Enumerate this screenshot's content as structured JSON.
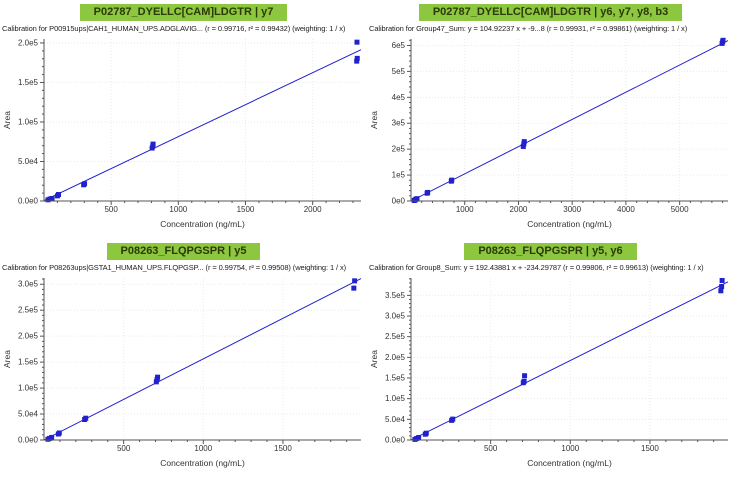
{
  "app": {
    "background": "#ffffff",
    "colors": {
      "title_bar_bg": "#8dc63f",
      "title_text": "#2b3a08",
      "series_blue": "#2121cd",
      "axis": "#555555",
      "grid": "#eaeaea",
      "tick_text": "#333333"
    }
  },
  "chart_data": [
    {
      "type": "scatter",
      "title": "P02787_DYELLC[CAM]LDGTR | y7",
      "subtitle": "Calibration for P00915ups|CAH1_HUMAN_UPS.ADGLAVIG... (r = 0.99716, r² = 0.99432) (weighting: 1 / x)",
      "xlabel": "Concentration (ng/mL)",
      "ylabel": "Area",
      "xlim": [
        0,
        2360
      ],
      "ylim": [
        0,
        205000
      ],
      "grid": true,
      "legend": "none",
      "xticks": [
        [
          500,
          "500"
        ],
        [
          1000,
          "1000"
        ],
        [
          1500,
          "1500"
        ],
        [
          2000,
          "2000"
        ]
      ],
      "yticks": [
        [
          0,
          "0.0e0"
        ],
        [
          50000,
          "5.0e4"
        ],
        [
          100000,
          "1.0e5"
        ],
        [
          150000,
          "1.5e5"
        ],
        [
          200000,
          "2.0e5"
        ]
      ],
      "x_minor_step": 100,
      "y_minor_step": 10000,
      "regression": {
        "r": 0.99716,
        "r2": 0.99432,
        "weighting": "1 / x",
        "line": [
          [
            0,
            500
          ],
          [
            2360,
            191500
          ]
        ]
      },
      "points": [
        [
          30,
          1500
        ],
        [
          45,
          2500
        ],
        [
          60,
          3200
        ],
        [
          100,
          6500
        ],
        [
          108,
          8200
        ],
        [
          295,
          20500
        ],
        [
          302,
          21800
        ],
        [
          805,
          67000
        ],
        [
          810,
          69500
        ],
        [
          812,
          72000
        ],
        [
          2328,
          177000
        ],
        [
          2332,
          180500
        ],
        [
          2330,
          201000
        ]
      ]
    },
    {
      "type": "scatter",
      "title": "P02787_DYELLC[CAM]LDGTR | y6, y7, y8, b3",
      "subtitle": "Calibration for Group47_Sum: y = 104.92237 x + -9...8 (r = 0.99931, r² = 0.99861) (weighting: 1 / x)",
      "xlabel": "Concentration (ng/mL)",
      "ylabel": "Area",
      "xlim": [
        0,
        5900
      ],
      "ylim": [
        0,
        625000
      ],
      "grid": true,
      "legend": "none",
      "xticks": [
        [
          1000,
          "1000"
        ],
        [
          2000,
          "2000"
        ],
        [
          3000,
          "3000"
        ],
        [
          4000,
          "4000"
        ],
        [
          5000,
          "5000"
        ]
      ],
      "yticks": [
        [
          0,
          "0e0"
        ],
        [
          100000,
          "1e5"
        ],
        [
          200000,
          "2e5"
        ],
        [
          300000,
          "3e5"
        ],
        [
          400000,
          "4e5"
        ],
        [
          500000,
          "5e5"
        ],
        [
          600000,
          "6e5"
        ]
      ],
      "x_minor_step": 200,
      "y_minor_step": 20000,
      "regression": {
        "slope": 104.92237,
        "r": 0.99931,
        "r2": 0.99861,
        "weighting": "1 / x",
        "line": [
          [
            0,
            0
          ],
          [
            5900,
            619000
          ]
        ]
      },
      "points": [
        [
          60,
          2000
        ],
        [
          75,
          4000
        ],
        [
          90,
          6500
        ],
        [
          112,
          9000
        ],
        [
          300,
          30000
        ],
        [
          310,
          33000
        ],
        [
          750,
          76500
        ],
        [
          758,
          80500
        ],
        [
          2090,
          210500
        ],
        [
          2100,
          220000
        ],
        [
          2108,
          229000
        ],
        [
          5790,
          608000
        ],
        [
          5800,
          614500
        ],
        [
          5808,
          620000
        ]
      ]
    },
    {
      "type": "scatter",
      "title": "P08263_FLQPGSPR | y5",
      "subtitle": "Calibration for P08263ups|GSTA1_HUMAN_UPS.FLQPGSP... (r = 0.99754, r² = 0.99508) (weighting: 1 / x)",
      "xlabel": "Concentration (ng/mL)",
      "ylabel": "Area",
      "xlim": [
        0,
        1990
      ],
      "ylim": [
        0,
        312000
      ],
      "grid": true,
      "legend": "none",
      "xticks": [
        [
          500,
          "500"
        ],
        [
          1000,
          "1000"
        ],
        [
          1500,
          "1500"
        ]
      ],
      "yticks": [
        [
          0,
          "0.0e0"
        ],
        [
          50000,
          "5.0e4"
        ],
        [
          100000,
          "1.0e5"
        ],
        [
          150000,
          "1.5e5"
        ],
        [
          200000,
          "2.0e5"
        ],
        [
          250000,
          "2.5e5"
        ],
        [
          300000,
          "3.0e5"
        ]
      ],
      "x_minor_step": 100,
      "y_minor_step": 10000,
      "regression": {
        "r": 0.99754,
        "r2": 0.99508,
        "weighting": "1 / x",
        "line": [
          [
            0,
            0
          ],
          [
            1990,
            311000
          ]
        ]
      },
      "points": [
        [
          25,
          1500
        ],
        [
          35,
          3000
        ],
        [
          48,
          5000
        ],
        [
          90,
          11500
        ],
        [
          96,
          13500
        ],
        [
          255,
          39500
        ],
        [
          262,
          42000
        ],
        [
          705,
          112000
        ],
        [
          710,
          116500
        ],
        [
          713,
          121000
        ],
        [
          1945,
          292500
        ],
        [
          1950,
          306500
        ]
      ]
    },
    {
      "type": "scatter",
      "title": "P08263_FLQPGSPR | y5, y6",
      "subtitle": "Calibration for Group8_Sum: y = 192.43881 x + -234.29787 (r = 0.99806, r² = 0.99613) (weighting: 1 / x)",
      "xlabel": "Concentration (ng/mL)",
      "ylabel": "Area",
      "xlim": [
        0,
        1990
      ],
      "ylim": [
        0,
        392000
      ],
      "grid": true,
      "legend": "none",
      "xticks": [
        [
          500,
          "500"
        ],
        [
          1000,
          "1000"
        ],
        [
          1500,
          "1500"
        ]
      ],
      "yticks": [
        [
          0,
          "0.0e0"
        ],
        [
          50000,
          "5.0e4"
        ],
        [
          100000,
          "1.0e5"
        ],
        [
          150000,
          "1.5e5"
        ],
        [
          200000,
          "2.0e5"
        ],
        [
          250000,
          "2.5e5"
        ],
        [
          300000,
          "3.0e5"
        ],
        [
          350000,
          "3.5e5"
        ]
      ],
      "x_minor_step": 100,
      "y_minor_step": 10000,
      "regression": {
        "slope": 192.43881,
        "intercept": -234.29787,
        "r": 0.99806,
        "r2": 0.99613,
        "weighting": "1 / x",
        "line": [
          [
            0,
            0
          ],
          [
            1990,
            382700
          ]
        ]
      },
      "points": [
        [
          25,
          1500
        ],
        [
          35,
          3500
        ],
        [
          48,
          6000
        ],
        [
          90,
          14000
        ],
        [
          96,
          16500
        ],
        [
          255,
          47500
        ],
        [
          262,
          50500
        ],
        [
          705,
          138500
        ],
        [
          710,
          142000
        ],
        [
          713,
          155500
        ],
        [
          1945,
          361000
        ],
        [
          1950,
          371500
        ],
        [
          1953,
          386000
        ]
      ]
    }
  ]
}
